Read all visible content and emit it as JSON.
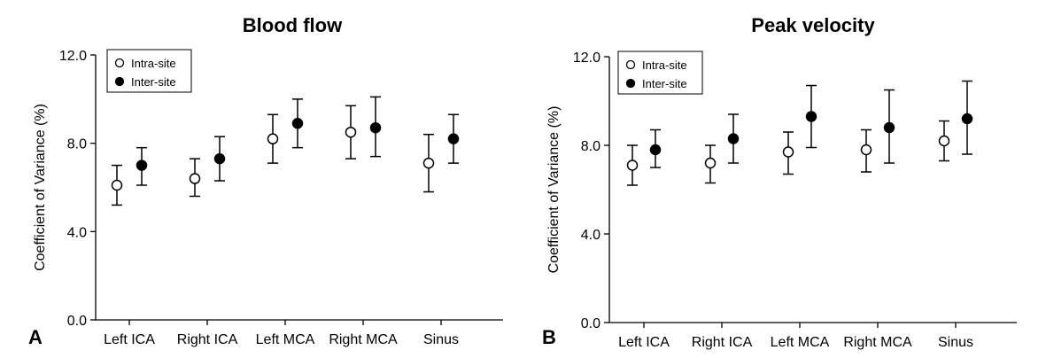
{
  "chart_data": [
    {
      "type": "scatter",
      "title": "Blood flow",
      "panel_label": "A",
      "ylabel": "Coefficient of Variance (%)",
      "xlabel": "",
      "ylim": [
        0,
        12
      ],
      "yticks": [
        "0.0",
        "4.0",
        "8.0",
        "12.0"
      ],
      "categories": [
        "Left ICA",
        "Right ICA",
        "Left MCA",
        "Right MCA",
        "Sinus"
      ],
      "legend": {
        "placement": "top-left",
        "entries": [
          "Intra-site",
          "Inter-site"
        ]
      },
      "series": [
        {
          "name": "Intra-site",
          "marker": "open-circle",
          "values": [
            6.1,
            6.4,
            8.2,
            8.5,
            7.1
          ],
          "lower": [
            5.2,
            5.6,
            7.1,
            7.3,
            5.8
          ],
          "upper": [
            7.0,
            7.3,
            9.3,
            9.7,
            8.4
          ]
        },
        {
          "name": "Inter-site",
          "marker": "filled-circle",
          "values": [
            7.0,
            7.3,
            8.9,
            8.7,
            8.2
          ],
          "lower": [
            6.1,
            6.3,
            7.8,
            7.4,
            7.1
          ],
          "upper": [
            7.8,
            8.3,
            10.0,
            10.1,
            9.3
          ]
        }
      ]
    },
    {
      "type": "scatter",
      "title": "Peak velocity",
      "panel_label": "B",
      "ylabel": "Coefficient of Variance (%)",
      "xlabel": "",
      "ylim": [
        0,
        12
      ],
      "yticks": [
        "0.0",
        "4.0",
        "8.0",
        "12.0"
      ],
      "categories": [
        "Left ICA",
        "Right ICA",
        "Left MCA",
        "Right MCA",
        "Sinus"
      ],
      "legend": {
        "placement": "top-left",
        "entries": [
          "Intra-site",
          "Inter-site"
        ]
      },
      "series": [
        {
          "name": "Intra-site",
          "marker": "open-circle",
          "values": [
            7.1,
            7.2,
            7.7,
            7.8,
            8.2
          ],
          "lower": [
            6.2,
            6.3,
            6.7,
            6.8,
            7.3
          ],
          "upper": [
            8.0,
            8.0,
            8.6,
            8.7,
            9.1
          ]
        },
        {
          "name": "Inter-site",
          "marker": "filled-circle",
          "values": [
            7.8,
            8.3,
            9.3,
            8.8,
            9.2
          ],
          "lower": [
            7.0,
            7.2,
            7.9,
            7.2,
            7.6
          ],
          "upper": [
            8.7,
            9.4,
            10.7,
            10.5,
            10.9
          ]
        }
      ]
    }
  ]
}
